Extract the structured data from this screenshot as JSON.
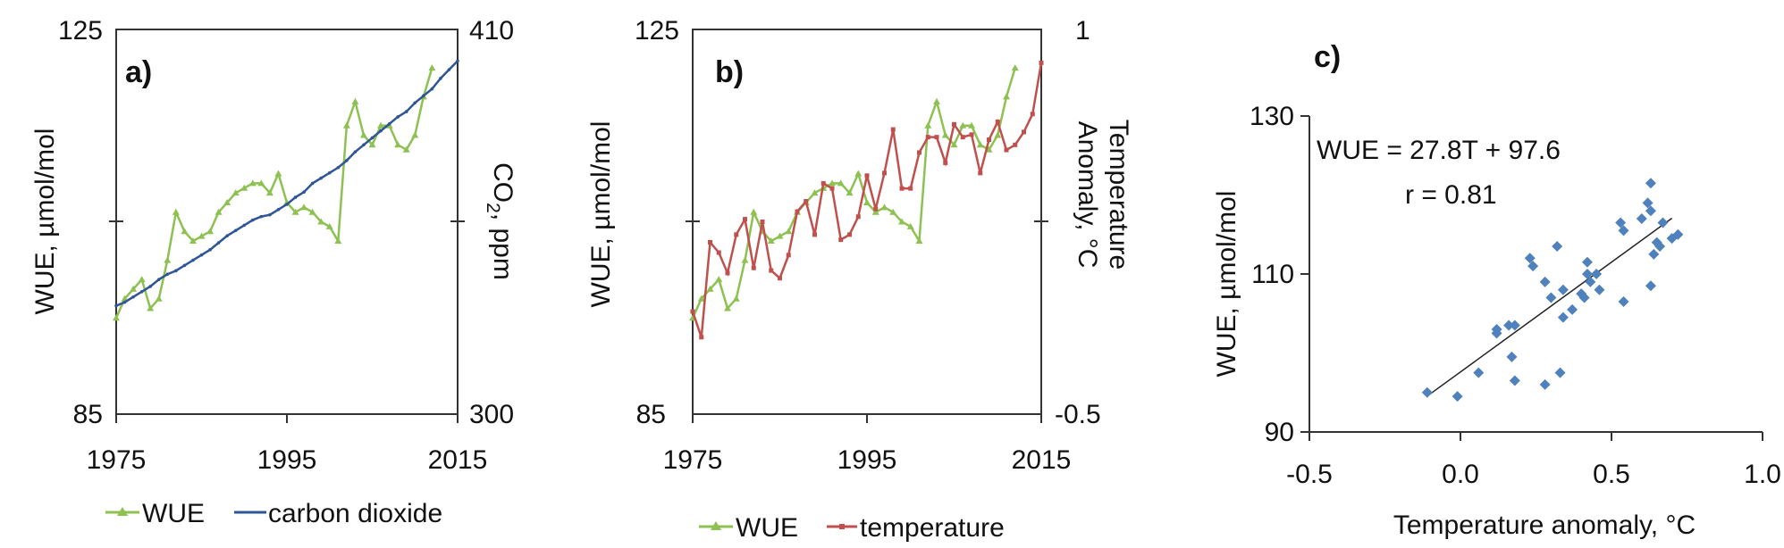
{
  "chart_data": [
    {
      "panel": "a)",
      "type": "line",
      "x_range": [
        1975,
        2015
      ],
      "x_ticks": [
        "1975",
        "1995",
        "2015"
      ],
      "ylabel_left": "WUE, µmol/mol",
      "ylabel_right": "CO",
      "ylabel_right_sub": "2",
      "ylabel_right_tail": ", ppm",
      "y_left_range": [
        85,
        125
      ],
      "y_left_ticks": [
        "125",
        "85"
      ],
      "y_right_range": [
        300,
        410
      ],
      "y_right_ticks": [
        "410",
        "300"
      ],
      "series": [
        {
          "name": "WUE",
          "color": "#8dc152",
          "axis": "left",
          "x": [
            1975,
            1976,
            1977,
            1978,
            1979,
            1980,
            1981,
            1982,
            1983,
            1984,
            1985,
            1986,
            1987,
            1988,
            1989,
            1990,
            1991,
            1992,
            1993,
            1994,
            1995,
            1996,
            1997,
            1998,
            1999,
            2000,
            2001,
            2002,
            2003,
            2004,
            2005,
            2006,
            2007,
            2008,
            2009,
            2010,
            2011,
            2012
          ],
          "values": [
            95,
            97,
            98,
            99,
            96,
            97,
            101,
            106,
            104,
            103,
            103.5,
            104,
            106,
            107,
            108,
            108.5,
            109,
            109,
            108,
            110,
            107,
            106,
            106.5,
            106,
            105,
            104.5,
            103,
            115,
            117.5,
            114,
            113,
            115,
            115,
            113,
            112.5,
            114,
            118,
            121
          ]
        },
        {
          "name": "carbon dioxide",
          "color": "#2e5596",
          "axis": "right",
          "x": [
            1975,
            1976,
            1977,
            1978,
            1979,
            1980,
            1981,
            1982,
            1983,
            1984,
            1985,
            1986,
            1987,
            1988,
            1989,
            1990,
            1991,
            1992,
            1993,
            1994,
            1995,
            1996,
            1997,
            1998,
            1999,
            2000,
            2001,
            2002,
            2003,
            2004,
            2005,
            2006,
            2007,
            2008,
            2009,
            2010,
            2011,
            2012,
            2013,
            2014,
            2015
          ],
          "values": [
            331,
            332,
            333.5,
            335,
            336.5,
            338.5,
            340,
            341,
            342.5,
            344,
            345.5,
            347,
            349,
            351,
            352.5,
            354,
            355.5,
            356.5,
            357,
            358.5,
            360,
            362,
            363.5,
            366,
            367.5,
            369,
            370.5,
            372.5,
            375,
            377,
            379,
            381,
            383,
            385,
            386.5,
            389,
            391,
            393,
            396,
            398.5,
            401
          ]
        }
      ]
    },
    {
      "panel": "b)",
      "type": "line",
      "x_range": [
        1975,
        2015
      ],
      "x_ticks": [
        "1975",
        "1995",
        "2015"
      ],
      "ylabel_left": "WUE, µmol/mol",
      "ylabel_right_line1": "Temperature",
      "ylabel_right_line2": "Anomaly, °C",
      "y_left_range": [
        85,
        125
      ],
      "y_left_ticks": [
        "125",
        "85"
      ],
      "y_right_range": [
        -0.5,
        1
      ],
      "y_right_ticks": [
        "1",
        "-0.5"
      ],
      "series": [
        {
          "name": "WUE",
          "color": "#8dc152",
          "axis": "left",
          "x": [
            1975,
            1976,
            1977,
            1978,
            1979,
            1980,
            1981,
            1982,
            1983,
            1984,
            1985,
            1986,
            1987,
            1988,
            1989,
            1990,
            1991,
            1992,
            1993,
            1994,
            1995,
            1996,
            1997,
            1998,
            1999,
            2000,
            2001,
            2002,
            2003,
            2004,
            2005,
            2006,
            2007,
            2008,
            2009,
            2010,
            2011,
            2012
          ],
          "values": [
            95,
            97,
            98,
            99,
            96,
            97,
            101,
            106,
            104,
            103,
            103.5,
            104,
            106,
            107,
            108,
            108.5,
            109,
            109,
            108,
            110,
            107,
            106,
            106.5,
            106,
            105,
            104.5,
            103,
            115,
            117.5,
            114,
            113,
            115,
            115,
            113,
            112.5,
            114,
            118,
            121
          ]
        },
        {
          "name": "temperature",
          "color": "#c0504d",
          "axis": "right",
          "x": [
            1975,
            1976,
            1977,
            1978,
            1979,
            1980,
            1981,
            1982,
            1983,
            1984,
            1985,
            1986,
            1987,
            1988,
            1989,
            1990,
            1991,
            1992,
            1993,
            1994,
            1995,
            1996,
            1997,
            1998,
            1999,
            2000,
            2001,
            2002,
            2003,
            2004,
            2005,
            2006,
            2007,
            2008,
            2009,
            2010,
            2011,
            2012,
            2013,
            2014,
            2015
          ],
          "values": [
            -0.1,
            -0.2,
            0.17,
            0.13,
            0.05,
            0.2,
            0.26,
            0.07,
            0.25,
            0.06,
            0.03,
            0.12,
            0.29,
            0.33,
            0.2,
            0.4,
            0.38,
            0.18,
            0.2,
            0.27,
            0.43,
            0.3,
            0.44,
            0.61,
            0.38,
            0.38,
            0.52,
            0.58,
            0.58,
            0.48,
            0.63,
            0.58,
            0.59,
            0.44,
            0.57,
            0.64,
            0.53,
            0.55,
            0.6,
            0.67,
            0.87
          ]
        }
      ]
    },
    {
      "panel": "c)",
      "type": "scatter",
      "xlabel": "Temperature anomaly, °C",
      "ylabel": "WUE, µmol/mol",
      "x_range": [
        -0.5,
        1.0
      ],
      "x_ticks": [
        "-0.5",
        "0.0",
        "0.5",
        "1.0"
      ],
      "y_range": [
        90,
        130
      ],
      "y_ticks": [
        "130",
        "110",
        "90"
      ],
      "equation": "WUE = 27.8T + 97.6",
      "r_label": "r = 0.81",
      "trendline": {
        "slope": 27.8,
        "intercept": 97.6,
        "x_from": -0.11,
        "x_to": 0.7
      },
      "series": [
        {
          "name": "",
          "color": "#4f81bd",
          "points": [
            [
              -0.11,
              95.0
            ],
            [
              -0.01,
              94.5
            ],
            [
              0.06,
              97.5
            ],
            [
              0.12,
              102.5
            ],
            [
              0.12,
              103.0
            ],
            [
              0.16,
              103.5
            ],
            [
              0.18,
              103.5
            ],
            [
              0.17,
              99.5
            ],
            [
              0.18,
              96.5
            ],
            [
              0.23,
              112.0
            ],
            [
              0.24,
              111.0
            ],
            [
              0.28,
              109.0
            ],
            [
              0.28,
              96.0
            ],
            [
              0.3,
              107.0
            ],
            [
              0.32,
              113.5
            ],
            [
              0.33,
              97.5
            ],
            [
              0.34,
              108.0
            ],
            [
              0.34,
              104.5
            ],
            [
              0.37,
              105.5
            ],
            [
              0.4,
              107.5
            ],
            [
              0.41,
              107.0
            ],
            [
              0.42,
              111.5
            ],
            [
              0.42,
              110.0
            ],
            [
              0.43,
              109.0
            ],
            [
              0.45,
              110.0
            ],
            [
              0.46,
              108.0
            ],
            [
              0.53,
              116.5
            ],
            [
              0.54,
              115.5
            ],
            [
              0.54,
              106.5
            ],
            [
              0.6,
              117.0
            ],
            [
              0.62,
              119.0
            ],
            [
              0.63,
              121.5
            ],
            [
              0.63,
              118.0
            ],
            [
              0.63,
              108.5
            ],
            [
              0.64,
              112.5
            ],
            [
              0.65,
              114.0
            ],
            [
              0.66,
              113.5
            ],
            [
              0.67,
              116.5
            ],
            [
              0.7,
              114.5
            ],
            [
              0.72,
              115.0
            ]
          ]
        }
      ]
    }
  ]
}
